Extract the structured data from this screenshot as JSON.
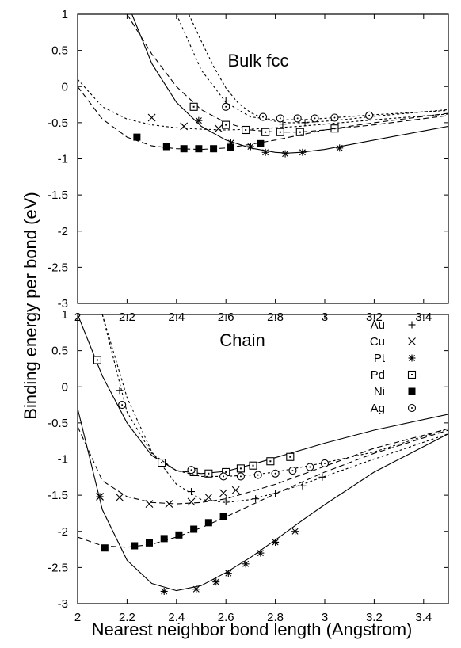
{
  "figure": {
    "ylabel": "Binding energy per bond (eV)",
    "xlabel": "Nearest neighbor bond length (Angstrom)"
  },
  "chart_data": [
    {
      "type": "line",
      "title": "Bulk fcc",
      "xlim": [
        2,
        3.5
      ],
      "ylim": [
        -3,
        1
      ],
      "x_ticks": [
        "2",
        "2.2",
        "2.4",
        "2.6",
        "2.8",
        "3",
        "3.2",
        "3.4"
      ],
      "y_ticks": [
        "1",
        "0.5",
        "0",
        "-0.5",
        "-1",
        "-1.5",
        "-2",
        "-2.5",
        "-3"
      ],
      "legend": false,
      "series": [
        {
          "marker": "plus",
          "line": "dotted",
          "curve": {
            "x": [
              2.45,
              2.5,
              2.55,
              2.6,
              2.65,
              2.7,
              2.75,
              2.8,
              2.85,
              2.9,
              3.0,
              3.1,
              3.2,
              3.3,
              3.5
            ],
            "y": [
              1.0,
              0.63,
              0.28,
              -0.02,
              -0.23,
              -0.36,
              -0.44,
              -0.48,
              -0.5,
              -0.5,
              -0.48,
              -0.45,
              -0.41,
              -0.38,
              -0.32
            ]
          },
          "points": {
            "x": [
              2.6,
              2.75,
              2.83,
              2.92
            ],
            "y": [
              -0.2,
              -0.42,
              -0.52,
              -0.5
            ]
          }
        },
        {
          "marker": "x",
          "line": "dotted",
          "curve": {
            "x": [
              2.0,
              2.1,
              2.2,
              2.3,
              2.4,
              2.5,
              2.6,
              2.7,
              2.8,
              2.9,
              3.0,
              3.2,
              3.5
            ],
            "y": [
              0.1,
              -0.28,
              -0.45,
              -0.53,
              -0.57,
              -0.59,
              -0.6,
              -0.59,
              -0.57,
              -0.55,
              -0.52,
              -0.46,
              -0.38
            ]
          },
          "points": {
            "x": [
              2.3,
              2.43,
              2.57
            ],
            "y": [
              -0.43,
              -0.55,
              -0.58
            ]
          }
        },
        {
          "marker": "star",
          "line": "solid",
          "curve": {
            "x": [
              2.22,
              2.3,
              2.4,
              2.5,
              2.6,
              2.7,
              2.8,
              2.85,
              2.9,
              3.0,
              3.2,
              3.5
            ],
            "y": [
              1.0,
              0.32,
              -0.22,
              -0.55,
              -0.74,
              -0.85,
              -0.91,
              -0.92,
              -0.91,
              -0.87,
              -0.74,
              -0.55
            ]
          },
          "points": {
            "x": [
              2.49,
              2.62,
              2.7,
              2.76,
              2.84,
              2.91,
              3.06
            ],
            "y": [
              -0.47,
              -0.78,
              -0.83,
              -0.91,
              -0.93,
              -0.91,
              -0.85
            ]
          }
        },
        {
          "marker": "square-open",
          "line": "dashed",
          "curve": {
            "x": [
              2.2,
              2.3,
              2.4,
              2.5,
              2.6,
              2.7,
              2.8,
              2.9,
              3.0,
              3.2,
              3.5
            ],
            "y": [
              1.0,
              0.45,
              0.0,
              -0.32,
              -0.5,
              -0.6,
              -0.63,
              -0.63,
              -0.6,
              -0.53,
              -0.4
            ]
          },
          "points": {
            "x": [
              2.47,
              2.6,
              2.68,
              2.76,
              2.82,
              2.9,
              3.04
            ],
            "y": [
              -0.28,
              -0.53,
              -0.6,
              -0.63,
              -0.63,
              -0.63,
              -0.58
            ]
          }
        },
        {
          "marker": "square-filled",
          "line": "dashed",
          "curve": {
            "x": [
              2.0,
              2.1,
              2.2,
              2.3,
              2.4,
              2.5,
              2.6,
              2.7,
              2.8,
              2.9,
              3.0,
              3.2,
              3.5
            ],
            "y": [
              0.0,
              -0.45,
              -0.7,
              -0.82,
              -0.86,
              -0.87,
              -0.85,
              -0.8,
              -0.74,
              -0.67,
              -0.6,
              -0.5,
              -0.37
            ]
          },
          "points": {
            "x": [
              2.24,
              2.36,
              2.43,
              2.49,
              2.55,
              2.62,
              2.74
            ],
            "y": [
              -0.7,
              -0.83,
              -0.86,
              -0.86,
              -0.86,
              -0.84,
              -0.79
            ]
          }
        },
        {
          "marker": "circle-open",
          "line": "dotted",
          "curve": {
            "x": [
              2.4,
              2.5,
              2.6,
              2.7,
              2.8,
              2.9,
              3.0,
              3.2,
              3.5
            ],
            "y": [
              1.0,
              0.23,
              -0.22,
              -0.42,
              -0.46,
              -0.46,
              -0.44,
              -0.39,
              -0.33
            ]
          },
          "points": {
            "x": [
              2.6,
              2.75,
              2.82,
              2.89,
              2.96,
              3.04,
              3.18
            ],
            "y": [
              -0.28,
              -0.42,
              -0.44,
              -0.44,
              -0.44,
              -0.43,
              -0.4
            ]
          }
        }
      ]
    },
    {
      "type": "line",
      "title": "Chain",
      "xlim": [
        2,
        3.5
      ],
      "ylim": [
        -3,
        1
      ],
      "x_ticks": [
        "2",
        "2.2",
        "2.4",
        "2.6",
        "2.8",
        "3",
        "3.2",
        "3.4"
      ],
      "y_ticks": [
        "1",
        "0.5",
        "0",
        "-0.5",
        "-1",
        "-1.5",
        "-2",
        "-2.5",
        "-3"
      ],
      "legend": true,
      "legend_position": "top-right",
      "series": [
        {
          "name": "Au",
          "marker": "plus",
          "line": "dotted",
          "curve": {
            "x": [
              2.1,
              2.2,
              2.3,
              2.4,
              2.5,
              2.6,
              2.7,
              2.8,
              2.9,
              3.0,
              3.2,
              3.5
            ],
            "y": [
              1.0,
              -0.15,
              -0.9,
              -1.35,
              -1.56,
              -1.6,
              -1.56,
              -1.47,
              -1.36,
              -1.24,
              -1.0,
              -0.65
            ]
          },
          "points": {
            "x": [
              2.17,
              2.46,
              2.6,
              2.72,
              2.8,
              2.91,
              2.99
            ],
            "y": [
              -0.05,
              -1.45,
              -1.58,
              -1.55,
              -1.48,
              -1.37,
              -1.25
            ]
          }
        },
        {
          "name": "Cu",
          "marker": "x",
          "line": "dashed",
          "curve": {
            "x": [
              2.0,
              2.1,
              2.2,
              2.3,
              2.4,
              2.5,
              2.6,
              2.7,
              2.8,
              3.0,
              3.2,
              3.5
            ],
            "y": [
              -0.55,
              -1.3,
              -1.52,
              -1.6,
              -1.62,
              -1.6,
              -1.55,
              -1.45,
              -1.35,
              -1.1,
              -0.85,
              -0.58
            ]
          },
          "points": {
            "x": [
              2.09,
              2.17,
              2.29,
              2.37,
              2.46,
              2.53,
              2.59,
              2.64
            ],
            "y": [
              -1.52,
              -1.53,
              -1.62,
              -1.62,
              -1.59,
              -1.53,
              -1.47,
              -1.43
            ]
          }
        },
        {
          "name": "Pt",
          "marker": "star",
          "line": "solid",
          "curve": {
            "x": [
              2.0,
              2.1,
              2.2,
              2.3,
              2.4,
              2.5,
              2.6,
              2.7,
              2.8,
              2.9,
              3.0,
              3.2,
              3.5
            ],
            "y": [
              -0.3,
              -1.7,
              -2.4,
              -2.72,
              -2.82,
              -2.75,
              -2.57,
              -2.36,
              -2.12,
              -1.87,
              -1.63,
              -1.18,
              -0.65
            ]
          },
          "points": {
            "x": [
              2.09,
              2.35,
              2.48,
              2.56,
              2.61,
              2.68,
              2.74,
              2.8,
              2.88
            ],
            "y": [
              -1.52,
              -2.83,
              -2.8,
              -2.7,
              -2.58,
              -2.45,
              -2.3,
              -2.15,
              -2.0
            ]
          }
        },
        {
          "name": "Pd",
          "marker": "square-open",
          "line": "solid",
          "curve": {
            "x": [
              2.0,
              2.1,
              2.2,
              2.3,
              2.4,
              2.5,
              2.6,
              2.7,
              2.8,
              3.0,
              3.2,
              3.5
            ],
            "y": [
              1.0,
              0.15,
              -0.5,
              -0.95,
              -1.16,
              -1.2,
              -1.17,
              -1.08,
              -0.98,
              -0.78,
              -0.6,
              -0.38
            ]
          },
          "points": {
            "x": [
              2.08,
              2.34,
              2.47,
              2.53,
              2.6,
              2.66,
              2.71,
              2.78,
              2.86
            ],
            "y": [
              0.37,
              -1.05,
              -1.18,
              -1.2,
              -1.18,
              -1.13,
              -1.09,
              -1.03,
              -0.97
            ]
          }
        },
        {
          "name": "Ni",
          "marker": "square-filled",
          "line": "dashed",
          "curve": {
            "x": [
              2.0,
              2.1,
              2.2,
              2.3,
              2.4,
              2.5,
              2.6,
              2.7,
              2.8,
              3.0,
              3.2,
              3.5
            ],
            "y": [
              -2.08,
              -2.2,
              -2.22,
              -2.18,
              -2.08,
              -1.95,
              -1.8,
              -1.64,
              -1.48,
              -1.18,
              -0.92,
              -0.6
            ]
          },
          "points": {
            "x": [
              2.11,
              2.23,
              2.29,
              2.35,
              2.41,
              2.47,
              2.53,
              2.59
            ],
            "y": [
              -2.23,
              -2.2,
              -2.16,
              -2.1,
              -2.05,
              -1.97,
              -1.88,
              -1.8
            ]
          }
        },
        {
          "name": "Ag",
          "marker": "circle-open",
          "line": "dotted",
          "curve": {
            "x": [
              2.1,
              2.2,
              2.3,
              2.4,
              2.5,
              2.6,
              2.7,
              2.8,
              3.0,
              3.2,
              3.5
            ],
            "y": [
              1.0,
              -0.35,
              -0.92,
              -1.16,
              -1.24,
              -1.24,
              -1.22,
              -1.18,
              -1.05,
              -0.9,
              -0.58
            ]
          },
          "points": {
            "x": [
              2.18,
              2.46,
              2.59,
              2.66,
              2.73,
              2.8,
              2.87,
              2.94,
              3.0
            ],
            "y": [
              -0.25,
              -1.15,
              -1.24,
              -1.24,
              -1.22,
              -1.2,
              -1.16,
              -1.11,
              -1.06
            ]
          }
        }
      ]
    }
  ]
}
